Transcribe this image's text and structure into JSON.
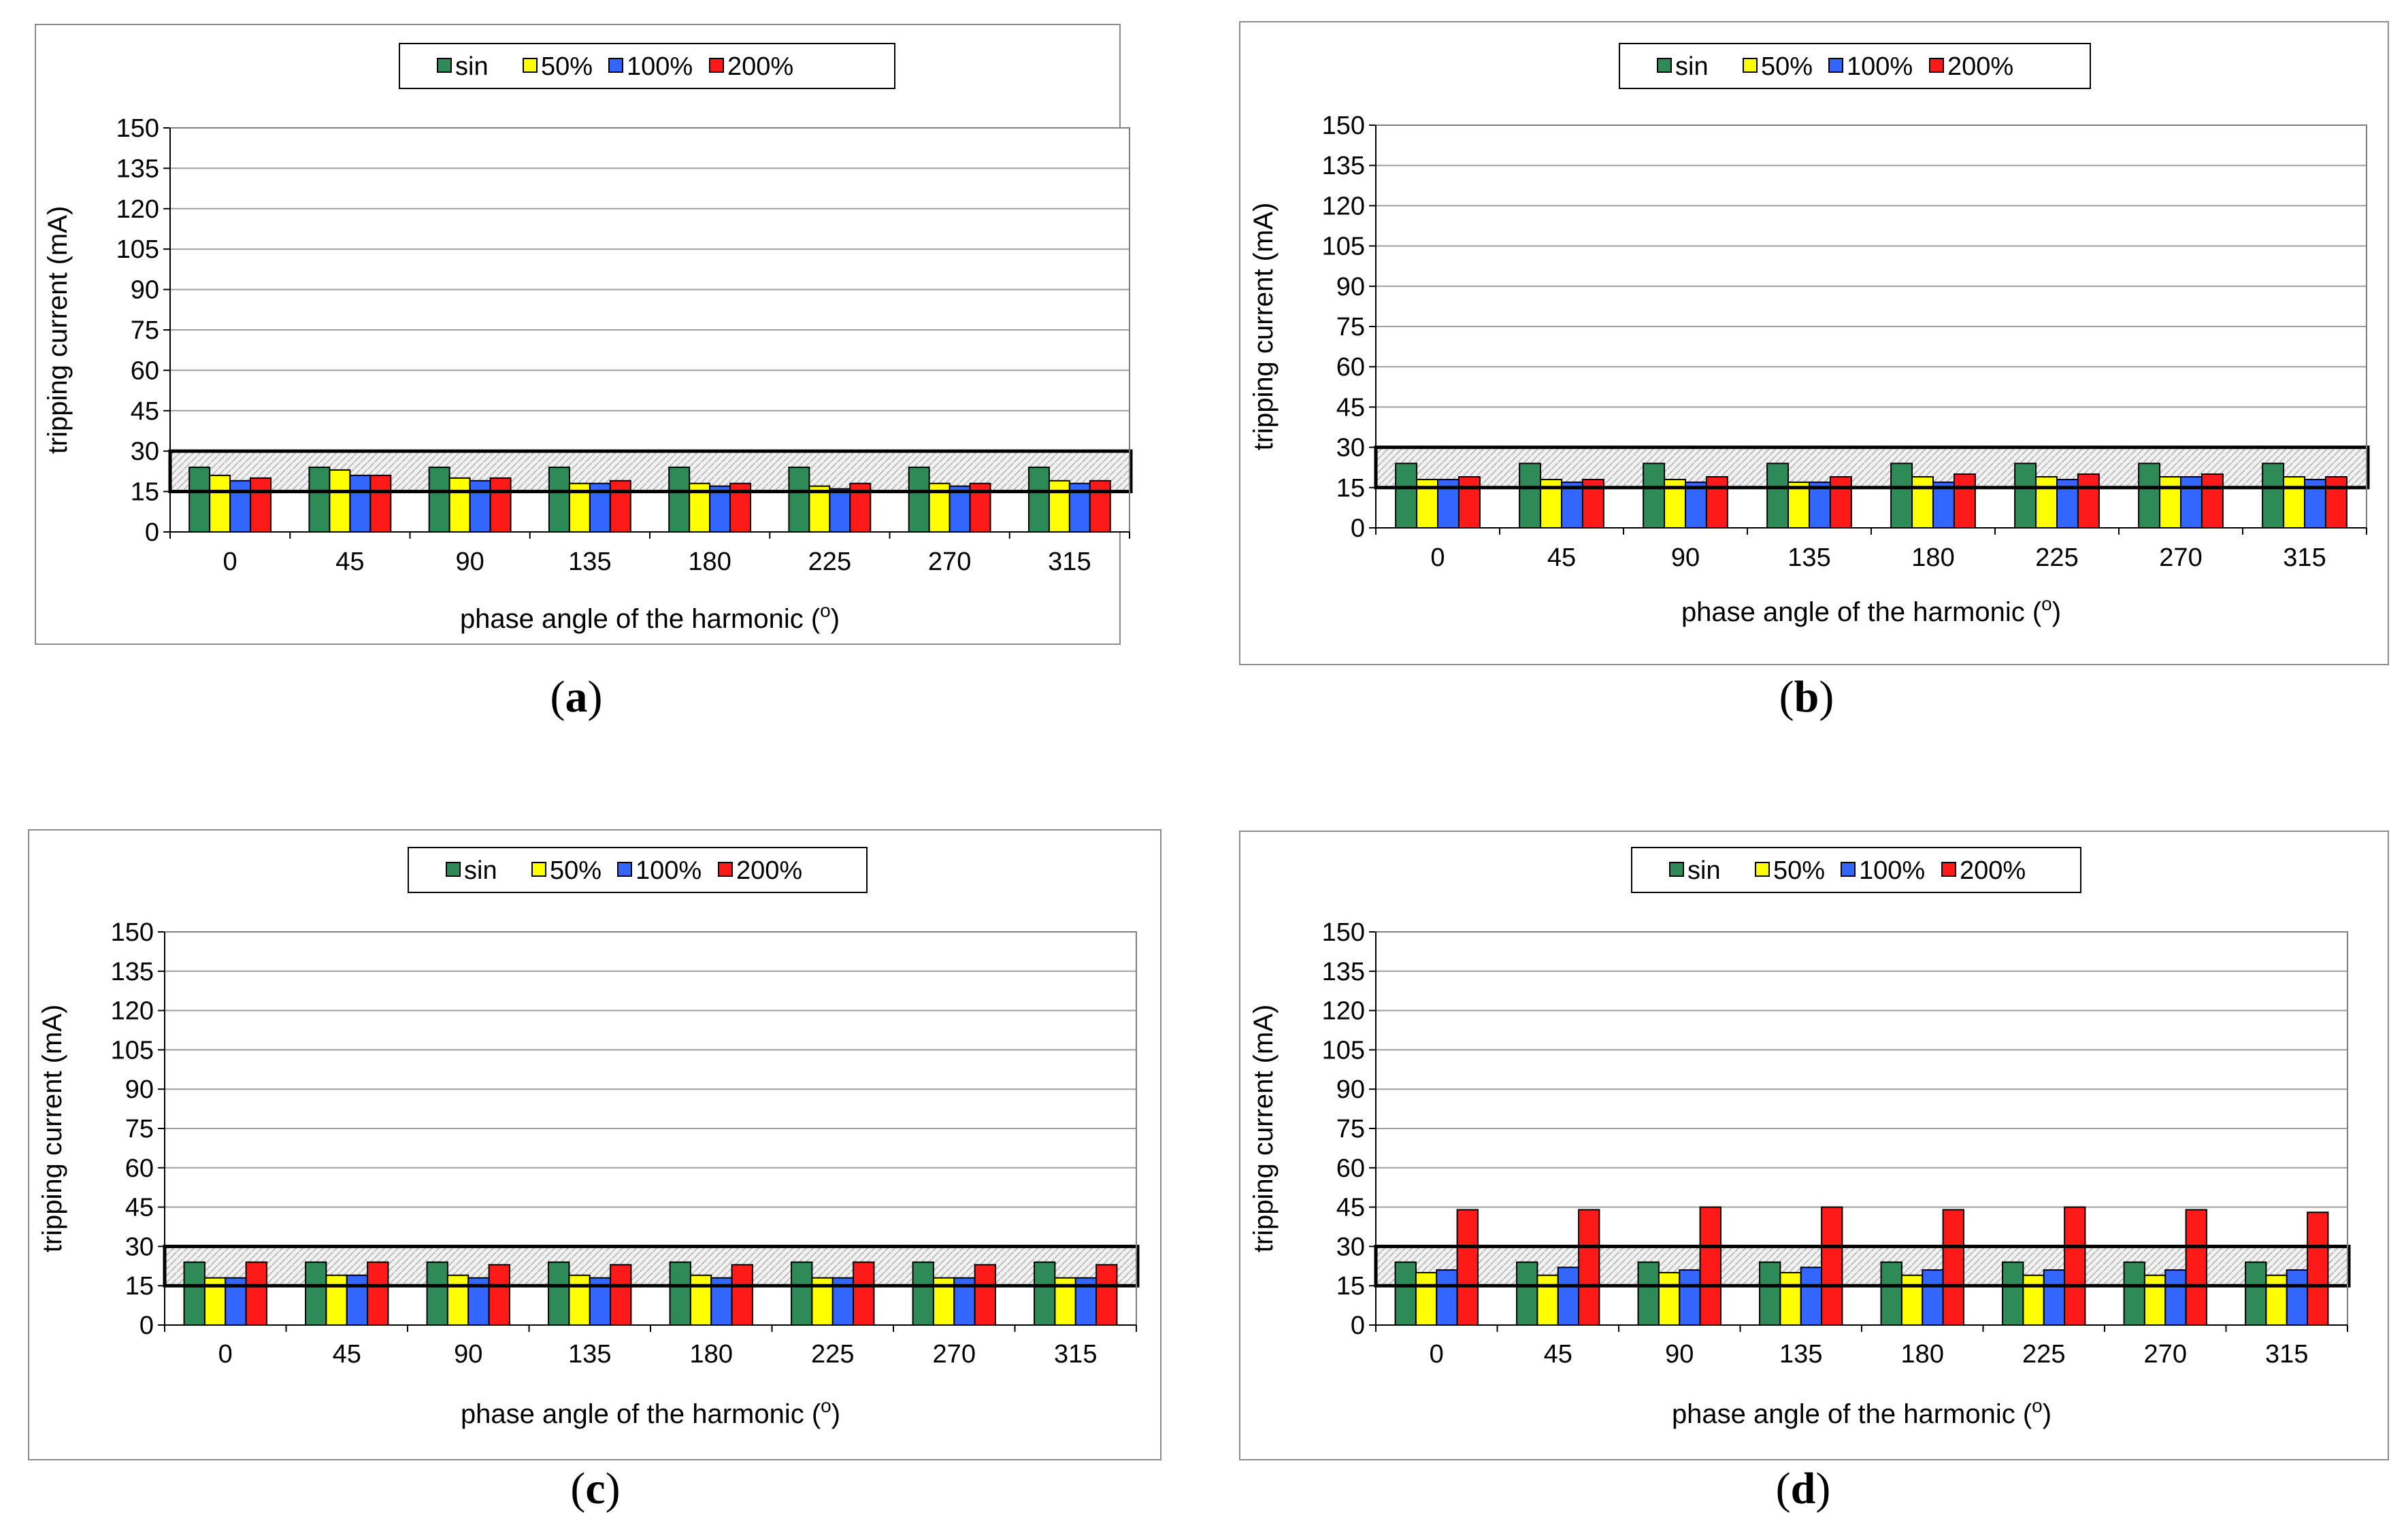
{
  "figure": {
    "panels": [
      {
        "panel_label": "(a)",
        "chart_data": {
          "type": "bar",
          "title": "",
          "xlabel": "phase angle of the harmonic (o)",
          "ylabel": "tripping current (mA)",
          "ylim": [
            0,
            150
          ],
          "yticks": [
            0,
            15,
            30,
            45,
            60,
            75,
            90,
            105,
            120,
            135,
            150
          ],
          "categories": [
            "0",
            "45",
            "90",
            "135",
            "180",
            "225",
            "270",
            "315"
          ],
          "legend_placement": "top-center",
          "grid": true,
          "band": {
            "from": 15,
            "to": 30,
            "label": "hatched band 15-30 mA"
          },
          "series": [
            {
              "name": "sin",
              "color": "#2e8b57",
              "values": [
                24,
                24,
                24,
                24,
                24,
                24,
                24,
                24
              ]
            },
            {
              "name": "50%",
              "color": "#ffff00",
              "values": [
                21,
                23,
                20,
                18,
                18,
                17,
                18,
                19
              ]
            },
            {
              "name": "100%",
              "color": "#3366ff",
              "values": [
                19,
                21,
                19,
                18,
                17,
                16,
                17,
                18
              ]
            },
            {
              "name": "200%",
              "color": "#ff1a1a",
              "values": [
                20,
                21,
                20,
                19,
                18,
                18,
                18,
                19
              ]
            }
          ]
        }
      },
      {
        "panel_label": "(b)",
        "chart_data": {
          "type": "bar",
          "title": "",
          "xlabel": "phase angle of the harmonic (o)",
          "ylabel": "tripping current (mA)",
          "ylim": [
            0,
            150
          ],
          "yticks": [
            0,
            15,
            30,
            45,
            60,
            75,
            90,
            105,
            120,
            135,
            150
          ],
          "categories": [
            "0",
            "45",
            "90",
            "135",
            "180",
            "225",
            "270",
            "315"
          ],
          "legend_placement": "top-center",
          "grid": true,
          "band": {
            "from": 15,
            "to": 30,
            "label": "hatched band 15-30 mA"
          },
          "series": [
            {
              "name": "sin",
              "color": "#2e8b57",
              "values": [
                24,
                24,
                24,
                24,
                24,
                24,
                24,
                24
              ]
            },
            {
              "name": "50%",
              "color": "#ffff00",
              "values": [
                18,
                18,
                18,
                17,
                19,
                19,
                19,
                19
              ]
            },
            {
              "name": "100%",
              "color": "#3366ff",
              "values": [
                18,
                17,
                17,
                17,
                17,
                18,
                19,
                18
              ]
            },
            {
              "name": "200%",
              "color": "#ff1a1a",
              "values": [
                19,
                18,
                19,
                19,
                20,
                20,
                20,
                19
              ]
            }
          ]
        }
      },
      {
        "panel_label": "(c)",
        "chart_data": {
          "type": "bar",
          "title": "",
          "xlabel": "phase angle of the harmonic (o)",
          "ylabel": "tripping current (mA)",
          "ylim": [
            0,
            150
          ],
          "yticks": [
            0,
            15,
            30,
            45,
            60,
            75,
            90,
            105,
            120,
            135,
            150
          ],
          "categories": [
            "0",
            "45",
            "90",
            "135",
            "180",
            "225",
            "270",
            "315"
          ],
          "legend_placement": "top-center",
          "grid": true,
          "band": {
            "from": 15,
            "to": 30,
            "label": "hatched band 15-30 mA"
          },
          "series": [
            {
              "name": "sin",
              "color": "#2e8b57",
              "values": [
                24,
                24,
                24,
                24,
                24,
                24,
                24,
                24
              ]
            },
            {
              "name": "50%",
              "color": "#ffff00",
              "values": [
                18,
                19,
                19,
                19,
                19,
                18,
                18,
                18
              ]
            },
            {
              "name": "100%",
              "color": "#3366ff",
              "values": [
                18,
                19,
                18,
                18,
                18,
                18,
                18,
                18
              ]
            },
            {
              "name": "200%",
              "color": "#ff1a1a",
              "values": [
                24,
                24,
                23,
                23,
                23,
                24,
                23,
                23
              ]
            }
          ]
        }
      },
      {
        "panel_label": "(d)",
        "chart_data": {
          "type": "bar",
          "title": "",
          "xlabel": "phase angle of the harmonic (o)",
          "ylabel": "tripping current (mA)",
          "ylim": [
            0,
            150
          ],
          "yticks": [
            0,
            15,
            30,
            45,
            60,
            75,
            90,
            105,
            120,
            135,
            150
          ],
          "categories": [
            "0",
            "45",
            "90",
            "135",
            "180",
            "225",
            "270",
            "315"
          ],
          "legend_placement": "top-center",
          "grid": true,
          "band": {
            "from": 15,
            "to": 30,
            "label": "hatched band 15-30 mA"
          },
          "series": [
            {
              "name": "sin",
              "color": "#2e8b57",
              "values": [
                24,
                24,
                24,
                24,
                24,
                24,
                24,
                24
              ]
            },
            {
              "name": "50%",
              "color": "#ffff00",
              "values": [
                20,
                19,
                20,
                20,
                19,
                19,
                19,
                19
              ]
            },
            {
              "name": "100%",
              "color": "#3366ff",
              "values": [
                21,
                22,
                21,
                22,
                21,
                21,
                21,
                21
              ]
            },
            {
              "name": "200%",
              "color": "#ff1a1a",
              "values": [
                44,
                44,
                45,
                45,
                44,
                45,
                44,
                43
              ]
            }
          ]
        }
      }
    ]
  },
  "chart_data": [
    {
      "panel": "(a)",
      "type": "bar",
      "xlabel": "phase angle of the harmonic (o)",
      "ylabel": "tripping current (mA)",
      "ylim": [
        0,
        150
      ],
      "categories": [
        "0",
        "45",
        "90",
        "135",
        "180",
        "225",
        "270",
        "315"
      ],
      "series": [
        {
          "name": "sin",
          "values": [
            24,
            24,
            24,
            24,
            24,
            24,
            24,
            24
          ]
        },
        {
          "name": "50%",
          "values": [
            21,
            23,
            20,
            18,
            18,
            17,
            18,
            19
          ]
        },
        {
          "name": "100%",
          "values": [
            19,
            21,
            19,
            18,
            17,
            16,
            17,
            18
          ]
        },
        {
          "name": "200%",
          "values": [
            20,
            21,
            20,
            19,
            18,
            18,
            18,
            19
          ]
        }
      ]
    },
    {
      "panel": "(b)",
      "type": "bar",
      "xlabel": "phase angle of the harmonic (o)",
      "ylabel": "tripping current (mA)",
      "ylim": [
        0,
        150
      ],
      "categories": [
        "0",
        "45",
        "90",
        "135",
        "180",
        "225",
        "270",
        "315"
      ],
      "series": [
        {
          "name": "sin",
          "values": [
            24,
            24,
            24,
            24,
            24,
            24,
            24,
            24
          ]
        },
        {
          "name": "50%",
          "values": [
            18,
            18,
            18,
            17,
            19,
            19,
            19,
            19
          ]
        },
        {
          "name": "100%",
          "values": [
            18,
            17,
            17,
            17,
            17,
            18,
            19,
            18
          ]
        },
        {
          "name": "200%",
          "values": [
            19,
            18,
            19,
            19,
            20,
            20,
            20,
            19
          ]
        }
      ]
    },
    {
      "panel": "(c)",
      "type": "bar",
      "xlabel": "phase angle of the harmonic (o)",
      "ylabel": "tripping current (mA)",
      "ylim": [
        0,
        150
      ],
      "categories": [
        "0",
        "45",
        "90",
        "135",
        "180",
        "225",
        "270",
        "315"
      ],
      "series": [
        {
          "name": "sin",
          "values": [
            24,
            24,
            24,
            24,
            24,
            24,
            24,
            24
          ]
        },
        {
          "name": "50%",
          "values": [
            18,
            19,
            19,
            19,
            19,
            18,
            18,
            18
          ]
        },
        {
          "name": "100%",
          "values": [
            18,
            19,
            18,
            18,
            18,
            18,
            18,
            18
          ]
        },
        {
          "name": "200%",
          "values": [
            24,
            24,
            23,
            23,
            23,
            24,
            23,
            23
          ]
        }
      ]
    },
    {
      "panel": "(d)",
      "type": "bar",
      "xlabel": "phase angle of the harmonic (o)",
      "ylabel": "tripping current (mA)",
      "ylim": [
        0,
        150
      ],
      "categories": [
        "0",
        "45",
        "90",
        "135",
        "180",
        "225",
        "270",
        "315"
      ],
      "series": [
        {
          "name": "sin",
          "values": [
            24,
            24,
            24,
            24,
            24,
            24,
            24,
            24
          ]
        },
        {
          "name": "50%",
          "values": [
            20,
            19,
            20,
            20,
            19,
            19,
            19,
            19
          ]
        },
        {
          "name": "100%",
          "values": [
            21,
            22,
            21,
            22,
            21,
            21,
            21,
            21
          ]
        },
        {
          "name": "200%",
          "values": [
            44,
            44,
            45,
            45,
            44,
            45,
            44,
            43
          ]
        }
      ]
    }
  ]
}
